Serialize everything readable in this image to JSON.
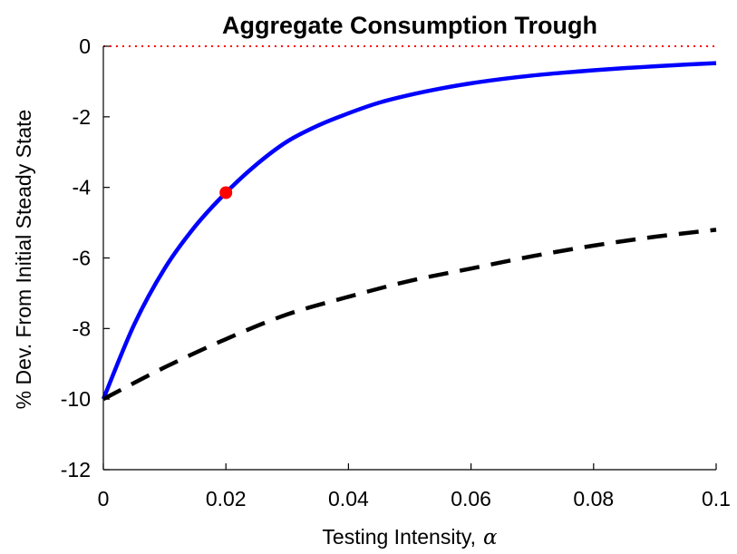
{
  "chart_data": {
    "type": "line",
    "title": "Aggregate Consumption Trough",
    "xlabel": "Testing Intensity,",
    "xlabel_symbol": "α",
    "ylabel": "% Dev. From Initial Steady State",
    "xlim": [
      0,
      0.1
    ],
    "ylim": [
      -12,
      0
    ],
    "x_ticks": [
      0,
      0.02,
      0.04,
      0.06,
      0.08,
      0.1
    ],
    "x_tick_labels": [
      "0",
      "0.02",
      "0.04",
      "0.06",
      "0.08",
      "0.1"
    ],
    "y_ticks": [
      0,
      -2,
      -4,
      -6,
      -8,
      -10,
      -12
    ],
    "y_tick_labels": [
      "0",
      "-2",
      "-4",
      "-6",
      "-8",
      "-10",
      "-12"
    ],
    "grid": false,
    "series": [
      {
        "style": "solid",
        "color": "#0000ff",
        "x": [
          0,
          0.005,
          0.01,
          0.015,
          0.02,
          0.025,
          0.03,
          0.035,
          0.04,
          0.045,
          0.05,
          0.055,
          0.06,
          0.065,
          0.07,
          0.075,
          0.08,
          0.085,
          0.09,
          0.095,
          0.1
        ],
        "y": [
          -10.0,
          -7.9,
          -6.3,
          -5.1,
          -4.15,
          -3.35,
          -2.7,
          -2.25,
          -1.9,
          -1.6,
          -1.38,
          -1.2,
          -1.05,
          -0.93,
          -0.83,
          -0.75,
          -0.68,
          -0.62,
          -0.57,
          -0.52,
          -0.48
        ]
      },
      {
        "style": "dashed",
        "color": "#000000",
        "x": [
          0,
          0.01,
          0.02,
          0.03,
          0.04,
          0.05,
          0.06,
          0.07,
          0.08,
          0.09,
          0.1
        ],
        "y": [
          -10.0,
          -9.1,
          -8.3,
          -7.6,
          -7.1,
          -6.65,
          -6.3,
          -5.95,
          -5.65,
          -5.4,
          -5.2
        ]
      },
      {
        "style": "dotted",
        "color": "#ff0000",
        "x": [
          0,
          0.1
        ],
        "y": [
          0,
          0
        ]
      }
    ],
    "markers": [
      {
        "x": 0.02,
        "y": -4.15,
        "color": "#ff0000"
      }
    ]
  }
}
